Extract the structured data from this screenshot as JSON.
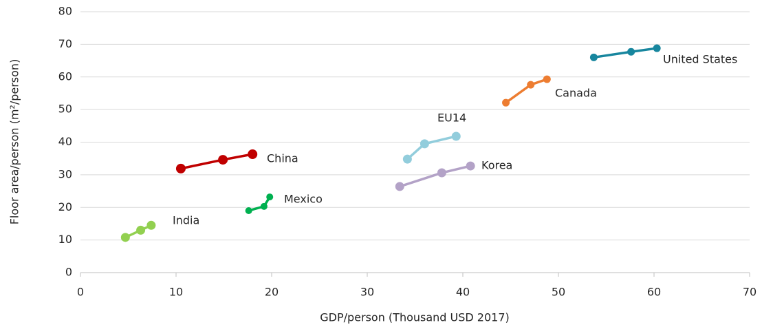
{
  "chart_data": {
    "type": "scatter",
    "x_label": "GDP/person (Thousand USD 2017)",
    "y_label": "Floor area/person  (m²/person)",
    "xlim": [
      0,
      70
    ],
    "xticks": [
      0,
      10,
      20,
      30,
      40,
      50,
      60,
      70
    ],
    "ylim": [
      0,
      80
    ],
    "yticks": [
      0,
      10,
      20,
      30,
      40,
      50,
      60,
      70,
      80
    ],
    "grid": true,
    "series": [
      {
        "name": "India",
        "color": "#92d050",
        "x": [
          4.7,
          6.3,
          7.4
        ],
        "values": [
          10.8,
          13,
          14.5
        ]
      },
      {
        "name": "China",
        "color": "#c00000",
        "x": [
          10.5,
          14.9,
          18.0
        ],
        "values": [
          31.9,
          34.6,
          36.3
        ]
      },
      {
        "name": "Mexico",
        "color": "#00b050",
        "x": [
          17.6,
          19.2,
          19.8
        ],
        "values": [
          19.0,
          20.3,
          23.2
        ]
      },
      {
        "name": "EU14",
        "color": "#92cddc",
        "x": [
          34.2,
          36.0,
          39.3
        ],
        "values": [
          34.8,
          39.5,
          41.8
        ]
      },
      {
        "name": "Korea",
        "color": "#b3a2c7",
        "x": [
          33.4,
          37.8,
          40.8
        ],
        "values": [
          26.4,
          30.6,
          32.7
        ]
      },
      {
        "name": "Canada",
        "color": "#ed7d31",
        "x": [
          44.5,
          47.1,
          48.8
        ],
        "values": [
          52.1,
          57.6,
          59.3
        ]
      },
      {
        "name": "United States",
        "color": "#17869e",
        "x": [
          53.7,
          57.6,
          60.3
        ],
        "values": [
          66.0,
          67.7,
          68.8
        ]
      }
    ]
  }
}
